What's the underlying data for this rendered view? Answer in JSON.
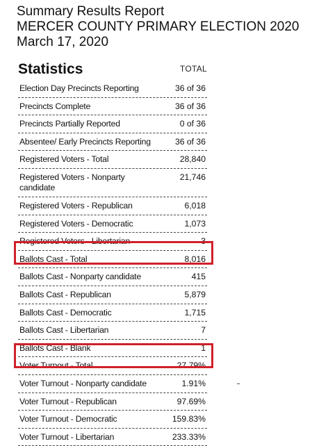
{
  "header": {
    "line1": "Summary Results Report",
    "line2": "MERCER COUNTY PRIMARY ELECTION 2020",
    "line3": "March 17, 2020"
  },
  "stats": {
    "title": "Statistics",
    "column_header": "TOTAL"
  },
  "rows": [
    {
      "label": "Election Day Precincts Reporting",
      "value": "36 of 36"
    },
    {
      "label": "Precincts Complete",
      "value": "36 of 36"
    },
    {
      "label": "Precincts Partially Reported",
      "value": "0 of 36"
    },
    {
      "label": "Absentee/ Early Precincts Reporting",
      "value": "36 of 36"
    },
    {
      "label": "Registered Voters - Total",
      "value": "28,840"
    },
    {
      "label": "Registered Voters - Nonparty candidate",
      "value": "21,746"
    },
    {
      "label": "Registered Voters - Republican",
      "value": "6,018"
    },
    {
      "label": "Registered Voters - Democratic",
      "value": "1,073"
    },
    {
      "label": "Registered Voters - Libertarian",
      "value": "3"
    },
    {
      "label": "Ballots Cast - Total",
      "value": "8,016"
    },
    {
      "label": "Ballots Cast - Nonparty candidate",
      "value": "415"
    },
    {
      "label": "Ballots Cast - Republican",
      "value": "5,879"
    },
    {
      "label": "Ballots Cast - Democratic",
      "value": "1,715"
    },
    {
      "label": "Ballots Cast - Libertarian",
      "value": "7"
    },
    {
      "label": "Ballots Cast - Blank",
      "value": "1"
    },
    {
      "label": "Voter Turnout - Total",
      "value": "27.79%"
    },
    {
      "label": "Voter Turnout - Nonparty candidate",
      "value": "1.91%"
    },
    {
      "label": "Voter Turnout - Republican",
      "value": "97.69%"
    },
    {
      "label": "Voter Turnout - Democratic",
      "value": "159.83%"
    },
    {
      "label": "Voter Turnout - Libertarian",
      "value": "233.33%"
    }
  ],
  "highlight_color": "#d0202a"
}
